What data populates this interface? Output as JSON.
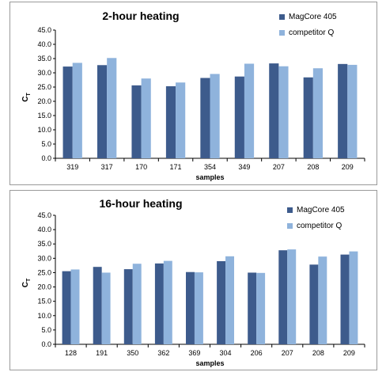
{
  "chart_data": [
    {
      "type": "bar",
      "title": "2-hour heating",
      "xlabel": "samples",
      "ylabel": "C",
      "ylabel_sub": "T",
      "ylim": [
        0,
        45
      ],
      "yticks": [
        "0.0",
        "5.0",
        "10.0",
        "15.0",
        "20.0",
        "25.0",
        "30.0",
        "35.0",
        "40.0",
        "45.0"
      ],
      "categories": [
        "319",
        "317",
        "170",
        "171",
        "354",
        "349",
        "207",
        "208",
        "209"
      ],
      "series": [
        {
          "name": "MagCore 405",
          "color": "#3d5b8c",
          "values": [
            32.2,
            32.7,
            25.6,
            25.3,
            28.2,
            28.7,
            33.3,
            28.4,
            33.1
          ]
        },
        {
          "name": "competitor Q",
          "color": "#8fb3dc",
          "values": [
            33.5,
            35.2,
            28.0,
            26.6,
            29.6,
            33.2,
            32.3,
            31.6,
            32.8
          ]
        }
      ],
      "legend": "top-right",
      "grid": false
    },
    {
      "type": "bar",
      "title": "16-hour heating",
      "xlabel": "samples",
      "ylabel": "C",
      "ylabel_sub": "T",
      "ylim": [
        0,
        45
      ],
      "yticks": [
        "0.0",
        "5.0",
        "10.0",
        "15.0",
        "20.0",
        "25.0",
        "30.0",
        "35.0",
        "40.0",
        "45.0"
      ],
      "categories": [
        "128",
        "191",
        "350",
        "362",
        "369",
        "304",
        "206",
        "207",
        "208",
        "209"
      ],
      "series": [
        {
          "name": "MagCore 405",
          "color": "#3d5b8c",
          "values": [
            25.5,
            27.0,
            26.2,
            28.2,
            25.2,
            29.0,
            25.0,
            32.8,
            27.8,
            31.3
          ]
        },
        {
          "name": "competitor Q",
          "color": "#8fb3dc",
          "values": [
            26.1,
            25.0,
            28.1,
            29.1,
            25.1,
            30.7,
            24.9,
            33.1,
            30.6,
            32.4
          ]
        }
      ],
      "legend": "top-right",
      "grid": false
    }
  ]
}
